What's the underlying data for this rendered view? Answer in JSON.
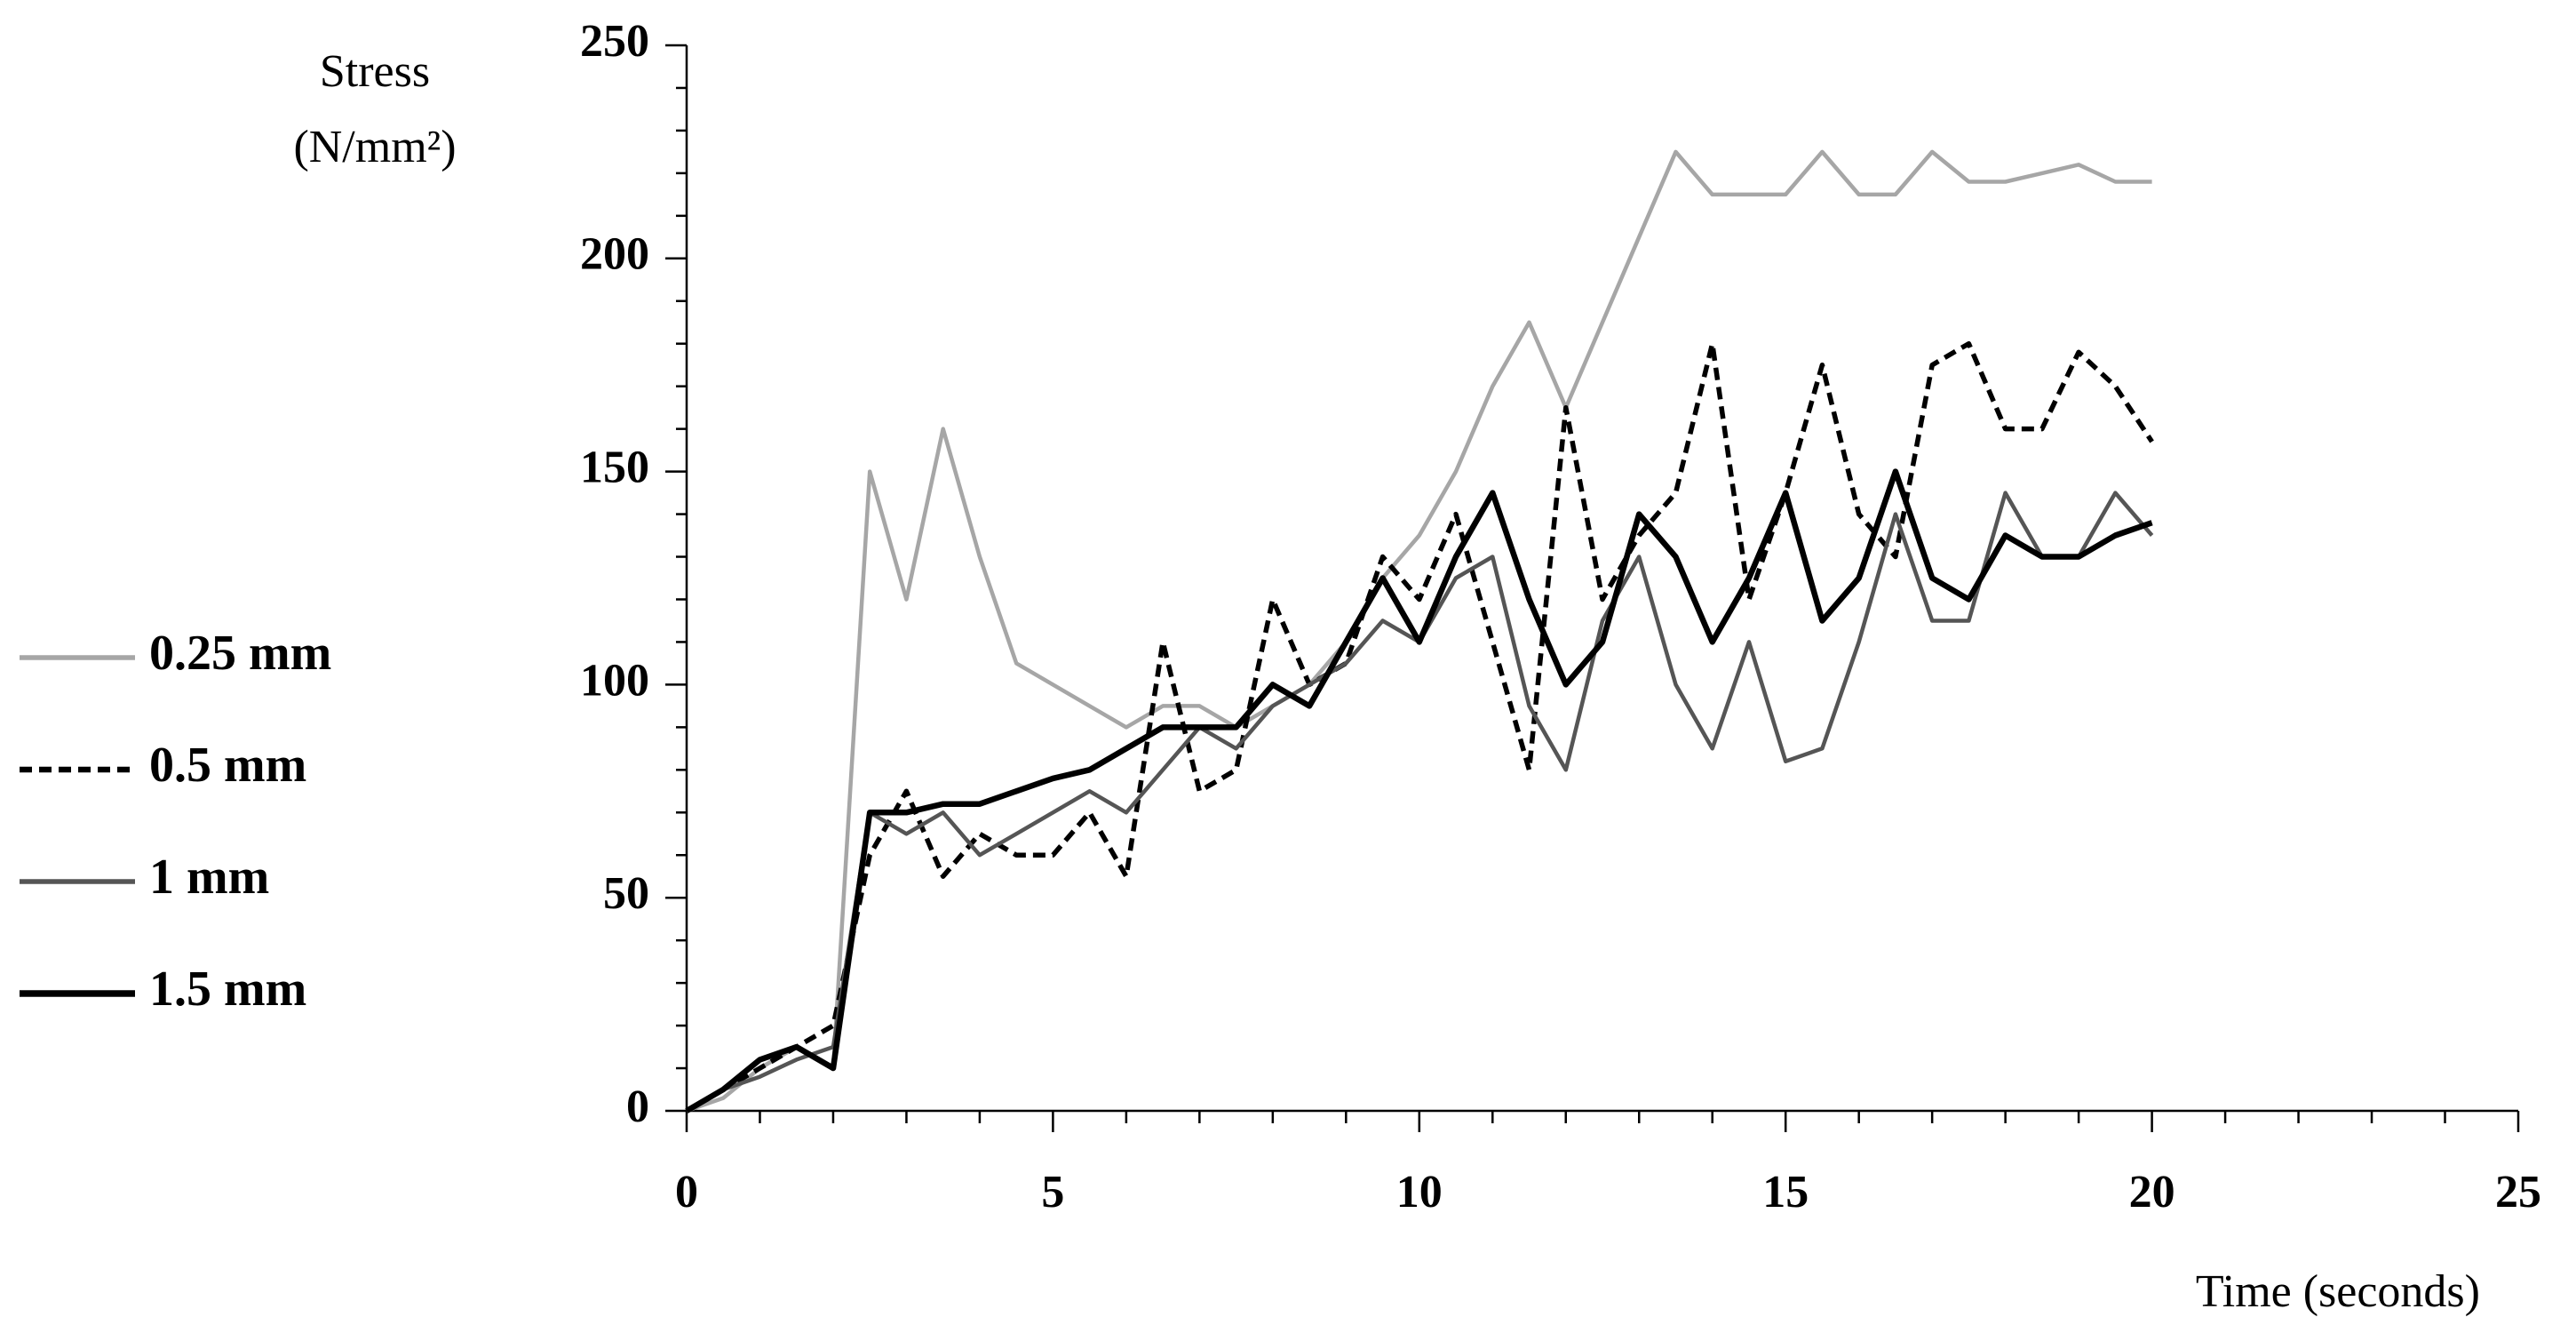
{
  "chart_data": {
    "type": "line",
    "ylabel": [
      "Stress",
      "(N/mm²)"
    ],
    "xlabel": "Time (seconds)",
    "x": [
      0,
      0.5,
      1,
      1.5,
      2,
      2.5,
      3,
      3.5,
      4,
      4.5,
      5,
      5.5,
      6,
      6.5,
      7,
      7.5,
      8,
      8.5,
      9,
      9.5,
      10,
      10.5,
      11,
      11.5,
      12,
      12.5,
      13,
      13.5,
      14,
      14.5,
      15,
      15.5,
      16,
      16.5,
      17,
      17.5,
      18,
      18.5,
      19,
      19.5,
      20
    ],
    "series": [
      {
        "name": "0.25 mm",
        "color": "#a6a6a6",
        "dashed": false,
        "values": [
          0,
          3,
          10,
          15,
          10,
          150,
          120,
          160,
          130,
          105,
          100,
          95,
          90,
          95,
          95,
          90,
          95,
          100,
          110,
          125,
          135,
          150,
          170,
          185,
          165,
          185,
          205,
          225,
          215,
          215,
          215,
          225,
          215,
          215,
          225,
          218,
          218,
          220,
          222,
          218,
          218
        ]
      },
      {
        "name": "0.5 mm",
        "color": "#000000",
        "dashed": true,
        "values": [
          0,
          5,
          10,
          15,
          20,
          60,
          75,
          55,
          65,
          60,
          60,
          70,
          55,
          110,
          75,
          80,
          120,
          100,
          105,
          130,
          120,
          140,
          110,
          80,
          165,
          120,
          135,
          145,
          180,
          120,
          145,
          175,
          140,
          130,
          175,
          180,
          160,
          160,
          178,
          170,
          157
        ]
      },
      {
        "name": "1 mm",
        "color": "#555555",
        "dashed": false,
        "values": [
          0,
          5,
          8,
          12,
          15,
          70,
          65,
          70,
          60,
          65,
          70,
          75,
          70,
          80,
          90,
          85,
          95,
          100,
          105,
          115,
          110,
          125,
          130,
          95,
          80,
          115,
          130,
          100,
          85,
          110,
          82,
          85,
          110,
          140,
          115,
          115,
          145,
          130,
          130,
          145,
          135
        ]
      },
      {
        "name": "1.5 mm",
        "color": "#000000",
        "dashed": false,
        "values": [
          0,
          5,
          12,
          15,
          10,
          70,
          70,
          72,
          72,
          75,
          78,
          80,
          85,
          90,
          90,
          90,
          100,
          95,
          110,
          125,
          110,
          130,
          145,
          120,
          100,
          110,
          140,
          130,
          110,
          125,
          145,
          115,
          125,
          150,
          125,
          120,
          135,
          130,
          130,
          135,
          138
        ]
      }
    ],
    "xlim": [
      0,
      25
    ],
    "xticks": [
      0,
      5,
      10,
      15,
      20,
      25
    ],
    "ylim": [
      0,
      250
    ],
    "yticks": [
      0,
      50,
      100,
      150,
      200,
      250
    ],
    "grid": false
  }
}
